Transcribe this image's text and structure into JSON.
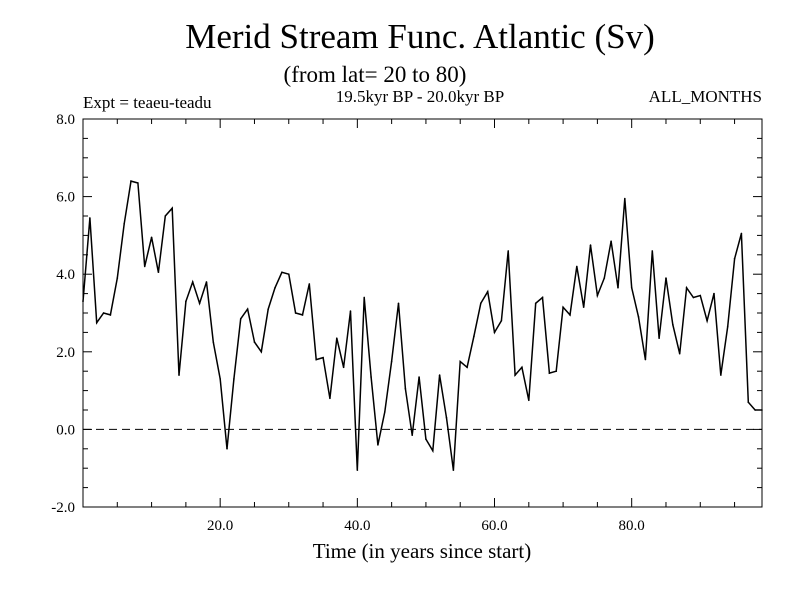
{
  "chart_data": {
    "type": "line",
    "title": "Merid Stream Func. Atlantic (Sv)",
    "subtitle": "(from lat= 20 to 80)",
    "experiment": "Expt = teaeu-teadu",
    "period": "19.5kyr BP - 20.0kyr BP",
    "months": "ALL_MONTHS",
    "xlabel": "Time (in years since start)",
    "ylabel": "",
    "xlim": [
      0,
      99
    ],
    "ylim": [
      -2.0,
      8.0
    ],
    "xticks": [
      20,
      40,
      60,
      80
    ],
    "xtick_labels": [
      "20.0",
      "40.0",
      "60.0",
      "80.0"
    ],
    "yticks": [
      -2,
      0,
      2,
      4,
      6,
      8
    ],
    "ytick_labels": [
      "-2.0",
      "0.0",
      "2.0",
      "4.0",
      "6.0",
      "8.0"
    ],
    "reference_line": 0.0,
    "series": [
      {
        "name": "Merid Stream Func.",
        "x": [
          0,
          1,
          2,
          3,
          4,
          5,
          6,
          7,
          8,
          9,
          10,
          11,
          12,
          13,
          14,
          15,
          16,
          17,
          18,
          19,
          20,
          21,
          22,
          23,
          24,
          25,
          26,
          27,
          28,
          29,
          30,
          31,
          32,
          33,
          34,
          35,
          36,
          37,
          38,
          39,
          40,
          41,
          42,
          43,
          44,
          45,
          46,
          47,
          48,
          49,
          50,
          51,
          52,
          53,
          54,
          55,
          56,
          57,
          58,
          59,
          60,
          61,
          62,
          63,
          64,
          65,
          66,
          67,
          68,
          69,
          70,
          71,
          72,
          73,
          74,
          75,
          76,
          77,
          78,
          79,
          80,
          81,
          82,
          83,
          84,
          85,
          86,
          87,
          88,
          89,
          90,
          91,
          92,
          93,
          94,
          95,
          96,
          97,
          98,
          99
        ],
        "values": [
          3.3,
          5.45,
          2.75,
          3.0,
          2.95,
          3.9,
          5.3,
          6.4,
          6.35,
          4.2,
          4.95,
          4.05,
          5.5,
          5.7,
          1.4,
          3.3,
          3.8,
          3.25,
          3.8,
          2.25,
          1.3,
          -0.5,
          1.3,
          2.85,
          3.1,
          2.25,
          2.0,
          3.1,
          3.65,
          4.05,
          4.0,
          3.0,
          2.95,
          3.75,
          1.8,
          1.85,
          0.8,
          2.35,
          1.6,
          3.05,
          -1.05,
          3.4,
          1.35,
          -0.4,
          0.45,
          1.75,
          3.25,
          1.05,
          -0.15,
          1.35,
          -0.25,
          -0.55,
          1.4,
          0.3,
          -1.05,
          1.75,
          1.6,
          2.4,
          3.25,
          3.55,
          2.5,
          2.8,
          4.6,
          1.4,
          1.6,
          0.75,
          3.25,
          3.4,
          1.45,
          1.5,
          3.15,
          2.95,
          4.2,
          3.15,
          4.75,
          3.45,
          3.9,
          4.85,
          3.65,
          5.95,
          3.65,
          2.9,
          1.8,
          4.6,
          2.35,
          3.9,
          2.7,
          1.95,
          3.65,
          3.4,
          3.45,
          2.8,
          3.5,
          1.4,
          2.65,
          4.4,
          5.05,
          0.7,
          0.5,
          0.5
        ]
      }
    ]
  }
}
